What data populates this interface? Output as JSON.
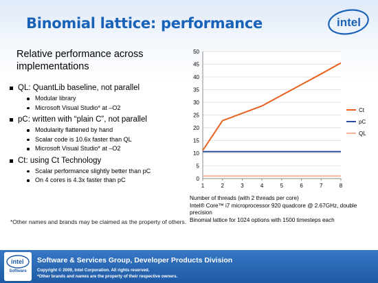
{
  "slide": {
    "title": "Binomial lattice: performance",
    "subtitle": "Relative performance across implementations",
    "logo_text": "intel",
    "disclaimer": "*Other names and brands may be claimed as the property of others."
  },
  "bullets": [
    {
      "text": "QL: QuantLib baseline, not parallel",
      "sub": [
        "Modular library",
        "Microsoft Visual Studio* at –O2"
      ]
    },
    {
      "text": "pC: written with “plain C”, not parallel",
      "sub": [
        "Modularity flattened by hand",
        "Scalar code is 10.6x faster than QL",
        "Microsoft Visual Studio* at –O2"
      ]
    },
    {
      "text": "Ct: using Ct Technology",
      "sub": [
        "Scalar performance slightly better than pC",
        "On 4 cores is 4.3x faster than pC"
      ]
    }
  ],
  "chart_notes": {
    "line1": "Number of threads (with 2 threads per core)",
    "line2": "Intel® Core™ i7 microprocessor 920 quadcore @ 2.67GHz, double precision",
    "line3": "Binomial lattice for 1024 options with 1500 timesteps each"
  },
  "footer": {
    "badge_logo": "intel",
    "badge_label": "Software",
    "division": "Software & Services Group, Developer Products Division",
    "copyright": "Copyright © 2009, Intel Corporation. All rights reserved.",
    "trademark": "*Other brands and names are the property of their respective owners."
  },
  "chart_data": {
    "type": "line",
    "x": [
      1,
      2,
      3,
      4,
      5,
      6,
      7,
      8
    ],
    "xlim": [
      1,
      8
    ],
    "ylim": [
      0,
      50
    ],
    "y_ticks": [
      0,
      5,
      10,
      15,
      20,
      25,
      30,
      35,
      40,
      45,
      50
    ],
    "grid": true,
    "legend_position": "right",
    "series": [
      {
        "name": "Ct",
        "color": "#e8601c",
        "values": [
          11.1,
          22.8,
          25.7,
          28.6,
          32.8,
          37.0,
          41.2,
          45.5
        ]
      },
      {
        "name": "pC",
        "color": "#2a4ba0",
        "values": [
          10.6,
          10.6,
          10.6,
          10.6,
          10.6,
          10.6,
          10.6,
          10.6
        ]
      },
      {
        "name": "QL",
        "color": "#f4b49a",
        "values": [
          1,
          1,
          1,
          1,
          1,
          1,
          1,
          1
        ]
      }
    ]
  }
}
